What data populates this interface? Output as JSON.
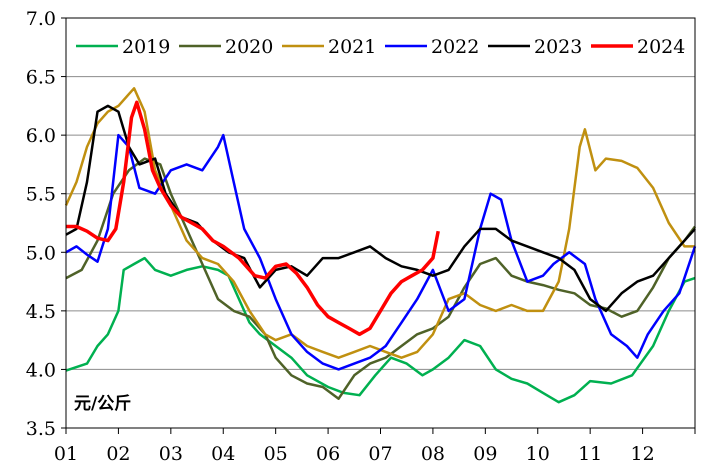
{
  "chart_data": {
    "type": "line",
    "unit_label": "元/公斤",
    "ylim": [
      3.5,
      7.0
    ],
    "yticks": [
      "3.5",
      "4.0",
      "4.5",
      "5.0",
      "5.5",
      "6.0",
      "6.5",
      "7.0"
    ],
    "ytick_values": [
      3.5,
      4.0,
      4.5,
      5.0,
      5.5,
      6.0,
      6.5,
      7.0
    ],
    "x_ticks": [
      "01",
      "02",
      "03",
      "04",
      "05",
      "06",
      "07",
      "08",
      "09",
      "10",
      "11",
      "12"
    ],
    "xlim": [
      1,
      13
    ],
    "grid": "horizontal",
    "legend_position": "top",
    "series": [
      {
        "name": "2019",
        "color": "#00b050",
        "width": 2.5,
        "points": [
          [
            1.0,
            3.99
          ],
          [
            1.2,
            4.02
          ],
          [
            1.4,
            4.05
          ],
          [
            1.6,
            4.2
          ],
          [
            1.8,
            4.3
          ],
          [
            2.0,
            4.5
          ],
          [
            2.1,
            4.85
          ],
          [
            2.3,
            4.9
          ],
          [
            2.5,
            4.95
          ],
          [
            2.7,
            4.85
          ],
          [
            3.0,
            4.8
          ],
          [
            3.3,
            4.85
          ],
          [
            3.6,
            4.88
          ],
          [
            3.9,
            4.85
          ],
          [
            4.1,
            4.8
          ],
          [
            4.3,
            4.6
          ],
          [
            4.5,
            4.4
          ],
          [
            4.7,
            4.3
          ],
          [
            5.0,
            4.2
          ],
          [
            5.3,
            4.1
          ],
          [
            5.6,
            3.95
          ],
          [
            6.0,
            3.85
          ],
          [
            6.3,
            3.8
          ],
          [
            6.6,
            3.78
          ],
          [
            6.9,
            3.95
          ],
          [
            7.2,
            4.1
          ],
          [
            7.5,
            4.05
          ],
          [
            7.8,
            3.95
          ],
          [
            8.0,
            4.0
          ],
          [
            8.3,
            4.1
          ],
          [
            8.6,
            4.25
          ],
          [
            8.9,
            4.2
          ],
          [
            9.2,
            4.0
          ],
          [
            9.5,
            3.92
          ],
          [
            9.8,
            3.88
          ],
          [
            10.1,
            3.8
          ],
          [
            10.4,
            3.72
          ],
          [
            10.7,
            3.78
          ],
          [
            11.0,
            3.9
          ],
          [
            11.4,
            3.88
          ],
          [
            11.8,
            3.95
          ],
          [
            12.2,
            4.2
          ],
          [
            12.5,
            4.5
          ],
          [
            12.8,
            4.75
          ],
          [
            13.0,
            4.78
          ]
        ]
      },
      {
        "name": "2020",
        "color": "#4f6228",
        "width": 2.5,
        "points": [
          [
            1.0,
            4.78
          ],
          [
            1.3,
            4.85
          ],
          [
            1.6,
            5.1
          ],
          [
            1.9,
            5.5
          ],
          [
            2.2,
            5.7
          ],
          [
            2.5,
            5.8
          ],
          [
            2.8,
            5.75
          ],
          [
            3.0,
            5.5
          ],
          [
            3.3,
            5.2
          ],
          [
            3.6,
            4.9
          ],
          [
            3.9,
            4.6
          ],
          [
            4.2,
            4.5
          ],
          [
            4.5,
            4.45
          ],
          [
            4.8,
            4.3
          ],
          [
            5.0,
            4.1
          ],
          [
            5.3,
            3.95
          ],
          [
            5.6,
            3.88
          ],
          [
            5.9,
            3.85
          ],
          [
            6.2,
            3.75
          ],
          [
            6.5,
            3.95
          ],
          [
            6.8,
            4.05
          ],
          [
            7.1,
            4.1
          ],
          [
            7.4,
            4.2
          ],
          [
            7.7,
            4.3
          ],
          [
            8.0,
            4.35
          ],
          [
            8.3,
            4.45
          ],
          [
            8.6,
            4.7
          ],
          [
            8.9,
            4.9
          ],
          [
            9.2,
            4.95
          ],
          [
            9.5,
            4.8
          ],
          [
            9.8,
            4.75
          ],
          [
            10.1,
            4.72
          ],
          [
            10.4,
            4.68
          ],
          [
            10.7,
            4.65
          ],
          [
            11.0,
            4.55
          ],
          [
            11.3,
            4.52
          ],
          [
            11.6,
            4.45
          ],
          [
            11.9,
            4.5
          ],
          [
            12.2,
            4.7
          ],
          [
            12.5,
            4.95
          ],
          [
            12.8,
            5.1
          ],
          [
            13.0,
            5.22
          ]
        ]
      },
      {
        "name": "2021",
        "color": "#c09010",
        "width": 2.5,
        "points": [
          [
            1.0,
            5.4
          ],
          [
            1.2,
            5.6
          ],
          [
            1.4,
            5.9
          ],
          [
            1.6,
            6.1
          ],
          [
            1.8,
            6.2
          ],
          [
            2.0,
            6.25
          ],
          [
            2.2,
            6.35
          ],
          [
            2.3,
            6.4
          ],
          [
            2.5,
            6.2
          ],
          [
            2.7,
            5.7
          ],
          [
            3.0,
            5.4
          ],
          [
            3.3,
            5.1
          ],
          [
            3.6,
            4.95
          ],
          [
            3.9,
            4.9
          ],
          [
            4.2,
            4.75
          ],
          [
            4.5,
            4.5
          ],
          [
            4.8,
            4.3
          ],
          [
            5.0,
            4.25
          ],
          [
            5.3,
            4.3
          ],
          [
            5.6,
            4.2
          ],
          [
            5.9,
            4.15
          ],
          [
            6.2,
            4.1
          ],
          [
            6.5,
            4.15
          ],
          [
            6.8,
            4.2
          ],
          [
            7.1,
            4.15
          ],
          [
            7.4,
            4.1
          ],
          [
            7.7,
            4.15
          ],
          [
            8.0,
            4.3
          ],
          [
            8.3,
            4.6
          ],
          [
            8.6,
            4.65
          ],
          [
            8.9,
            4.55
          ],
          [
            9.2,
            4.5
          ],
          [
            9.5,
            4.55
          ],
          [
            9.8,
            4.5
          ],
          [
            10.1,
            4.5
          ],
          [
            10.4,
            4.75
          ],
          [
            10.6,
            5.2
          ],
          [
            10.8,
            5.9
          ],
          [
            10.9,
            6.05
          ],
          [
            11.1,
            5.7
          ],
          [
            11.3,
            5.8
          ],
          [
            11.6,
            5.78
          ],
          [
            11.9,
            5.72
          ],
          [
            12.2,
            5.55
          ],
          [
            12.5,
            5.25
          ],
          [
            12.8,
            5.05
          ],
          [
            13.0,
            5.05
          ]
        ]
      },
      {
        "name": "2022",
        "color": "#0000ff",
        "width": 2.5,
        "points": [
          [
            1.0,
            5.0
          ],
          [
            1.2,
            5.05
          ],
          [
            1.4,
            4.98
          ],
          [
            1.6,
            4.92
          ],
          [
            1.8,
            5.2
          ],
          [
            2.0,
            6.0
          ],
          [
            2.2,
            5.9
          ],
          [
            2.4,
            5.55
          ],
          [
            2.7,
            5.5
          ],
          [
            3.0,
            5.7
          ],
          [
            3.3,
            5.75
          ],
          [
            3.6,
            5.7
          ],
          [
            3.9,
            5.9
          ],
          [
            4.0,
            6.0
          ],
          [
            4.2,
            5.6
          ],
          [
            4.4,
            5.2
          ],
          [
            4.7,
            4.95
          ],
          [
            5.0,
            4.6
          ],
          [
            5.3,
            4.3
          ],
          [
            5.6,
            4.15
          ],
          [
            5.9,
            4.05
          ],
          [
            6.2,
            4.0
          ],
          [
            6.5,
            4.05
          ],
          [
            6.8,
            4.1
          ],
          [
            7.1,
            4.2
          ],
          [
            7.4,
            4.4
          ],
          [
            7.7,
            4.6
          ],
          [
            8.0,
            4.85
          ],
          [
            8.3,
            4.5
          ],
          [
            8.6,
            4.6
          ],
          [
            8.9,
            5.2
          ],
          [
            9.1,
            5.5
          ],
          [
            9.3,
            5.45
          ],
          [
            9.5,
            5.1
          ],
          [
            9.8,
            4.75
          ],
          [
            10.1,
            4.8
          ],
          [
            10.3,
            4.9
          ],
          [
            10.6,
            5.0
          ],
          [
            10.9,
            4.9
          ],
          [
            11.1,
            4.6
          ],
          [
            11.4,
            4.3
          ],
          [
            11.7,
            4.2
          ],
          [
            11.9,
            4.1
          ],
          [
            12.1,
            4.3
          ],
          [
            12.4,
            4.5
          ],
          [
            12.7,
            4.65
          ],
          [
            13.0,
            5.05
          ]
        ]
      },
      {
        "name": "2023",
        "color": "#000000",
        "width": 2.5,
        "points": [
          [
            1.0,
            5.15
          ],
          [
            1.2,
            5.2
          ],
          [
            1.4,
            5.6
          ],
          [
            1.6,
            6.2
          ],
          [
            1.8,
            6.25
          ],
          [
            2.0,
            6.2
          ],
          [
            2.2,
            5.9
          ],
          [
            2.4,
            5.75
          ],
          [
            2.7,
            5.8
          ],
          [
            2.9,
            5.5
          ],
          [
            3.2,
            5.3
          ],
          [
            3.5,
            5.25
          ],
          [
            3.8,
            5.1
          ],
          [
            4.1,
            5.0
          ],
          [
            4.4,
            4.95
          ],
          [
            4.7,
            4.7
          ],
          [
            5.0,
            4.85
          ],
          [
            5.3,
            4.88
          ],
          [
            5.6,
            4.8
          ],
          [
            5.9,
            4.95
          ],
          [
            6.2,
            4.95
          ],
          [
            6.5,
            5.0
          ],
          [
            6.8,
            5.05
          ],
          [
            7.1,
            4.95
          ],
          [
            7.4,
            4.88
          ],
          [
            7.7,
            4.85
          ],
          [
            8.0,
            4.8
          ],
          [
            8.3,
            4.85
          ],
          [
            8.6,
            5.05
          ],
          [
            8.9,
            5.2
          ],
          [
            9.2,
            5.2
          ],
          [
            9.5,
            5.1
          ],
          [
            9.8,
            5.05
          ],
          [
            10.1,
            5.0
          ],
          [
            10.4,
            4.95
          ],
          [
            10.7,
            4.85
          ],
          [
            11.0,
            4.6
          ],
          [
            11.3,
            4.5
          ],
          [
            11.6,
            4.65
          ],
          [
            11.9,
            4.75
          ],
          [
            12.2,
            4.8
          ],
          [
            12.5,
            4.95
          ],
          [
            12.8,
            5.1
          ],
          [
            13.0,
            5.2
          ]
        ]
      },
      {
        "name": "2024",
        "color": "#ff0000",
        "width": 3.5,
        "points": [
          [
            1.0,
            5.22
          ],
          [
            1.2,
            5.22
          ],
          [
            1.4,
            5.18
          ],
          [
            1.6,
            5.12
          ],
          [
            1.8,
            5.1
          ],
          [
            1.95,
            5.2
          ],
          [
            2.1,
            5.6
          ],
          [
            2.25,
            6.15
          ],
          [
            2.35,
            6.28
          ],
          [
            2.5,
            6.05
          ],
          [
            2.65,
            5.7
          ],
          [
            2.8,
            5.55
          ],
          [
            3.0,
            5.4
          ],
          [
            3.2,
            5.3
          ],
          [
            3.4,
            5.25
          ],
          [
            3.6,
            5.2
          ],
          [
            3.8,
            5.1
          ],
          [
            4.0,
            5.05
          ],
          [
            4.3,
            4.95
          ],
          [
            4.6,
            4.8
          ],
          [
            4.8,
            4.78
          ],
          [
            5.0,
            4.88
          ],
          [
            5.2,
            4.9
          ],
          [
            5.4,
            4.82
          ],
          [
            5.6,
            4.7
          ],
          [
            5.8,
            4.55
          ],
          [
            6.0,
            4.45
          ],
          [
            6.2,
            4.4
          ],
          [
            6.4,
            4.35
          ],
          [
            6.6,
            4.3
          ],
          [
            6.8,
            4.35
          ],
          [
            7.0,
            4.5
          ],
          [
            7.2,
            4.65
          ],
          [
            7.4,
            4.75
          ],
          [
            7.6,
            4.8
          ],
          [
            7.8,
            4.85
          ],
          [
            8.0,
            4.95
          ],
          [
            8.1,
            5.18
          ]
        ]
      }
    ]
  }
}
